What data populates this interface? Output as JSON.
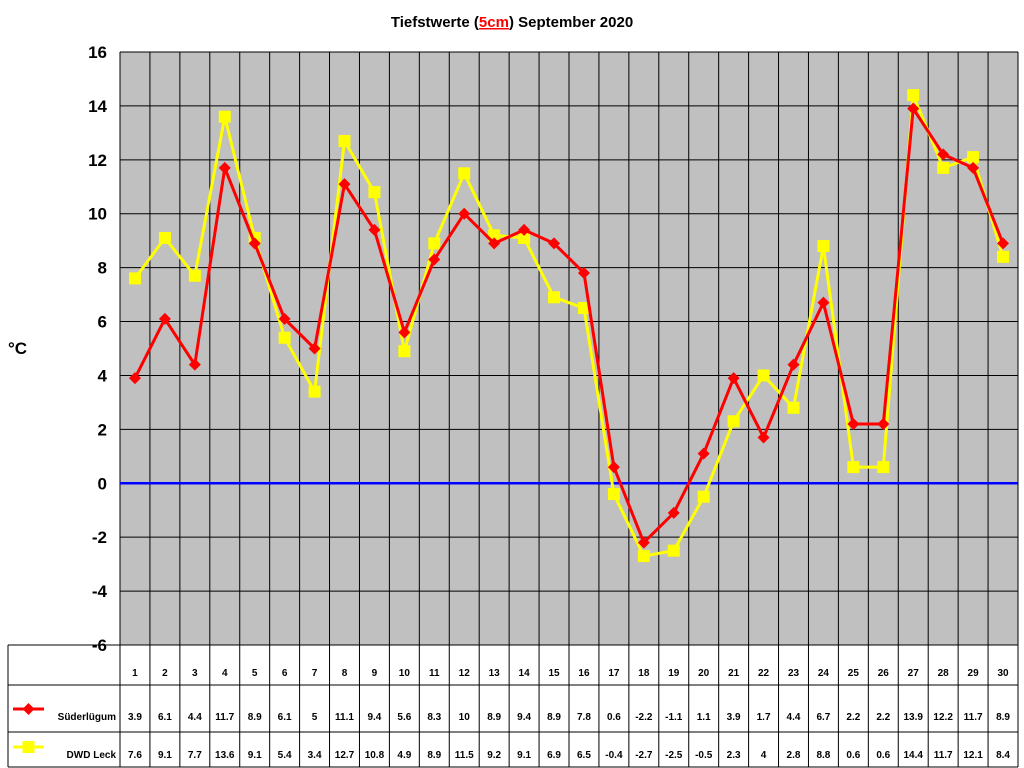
{
  "chart_data": {
    "type": "line",
    "title": {
      "prefix": "Tiefstwerte (",
      "highlight": "5cm",
      "suffix": ") September 2020"
    },
    "ylabel": "°C",
    "ylim": [
      -6,
      16
    ],
    "yticks": [
      16,
      14,
      12,
      10,
      8,
      6,
      4,
      2,
      0,
      -2,
      -4,
      -6
    ],
    "grid": true,
    "zero_line": true,
    "categories": [
      "1",
      "2",
      "3",
      "4",
      "5",
      "6",
      "7",
      "8",
      "9",
      "10",
      "11",
      "12",
      "13",
      "14",
      "15",
      "16",
      "17",
      "18",
      "19",
      "20",
      "21",
      "22",
      "23",
      "24",
      "25",
      "26",
      "27",
      "28",
      "29",
      "30"
    ],
    "series": [
      {
        "name": "Süderlügum",
        "color": "#ff0000",
        "marker": "diamond",
        "values": [
          3.9,
          6.1,
          4.4,
          11.7,
          8.9,
          6.1,
          5,
          11.1,
          9.4,
          5.6,
          8.3,
          10,
          8.9,
          9.4,
          8.9,
          7.8,
          0.6,
          -2.2,
          -1.1,
          1.1,
          3.9,
          1.7,
          4.4,
          6.7,
          2.2,
          2.2,
          13.9,
          12.2,
          11.7,
          8.9
        ]
      },
      {
        "name": "DWD Leck",
        "color": "#ffff00",
        "marker": "square",
        "values": [
          7.6,
          9.1,
          7.7,
          13.6,
          9.1,
          5.4,
          3.4,
          12.7,
          10.8,
          4.9,
          8.9,
          11.5,
          9.2,
          9.1,
          6.9,
          6.5,
          -0.4,
          -2.7,
          -2.5,
          -0.5,
          2.3,
          4,
          2.8,
          8.8,
          0.6,
          0.6,
          14.4,
          11.7,
          12.1,
          8.4
        ]
      }
    ],
    "colors": {
      "plot_bg": "#c0c0c0",
      "title_highlight": "#ff0000",
      "zero_line": "#0000ff"
    }
  }
}
